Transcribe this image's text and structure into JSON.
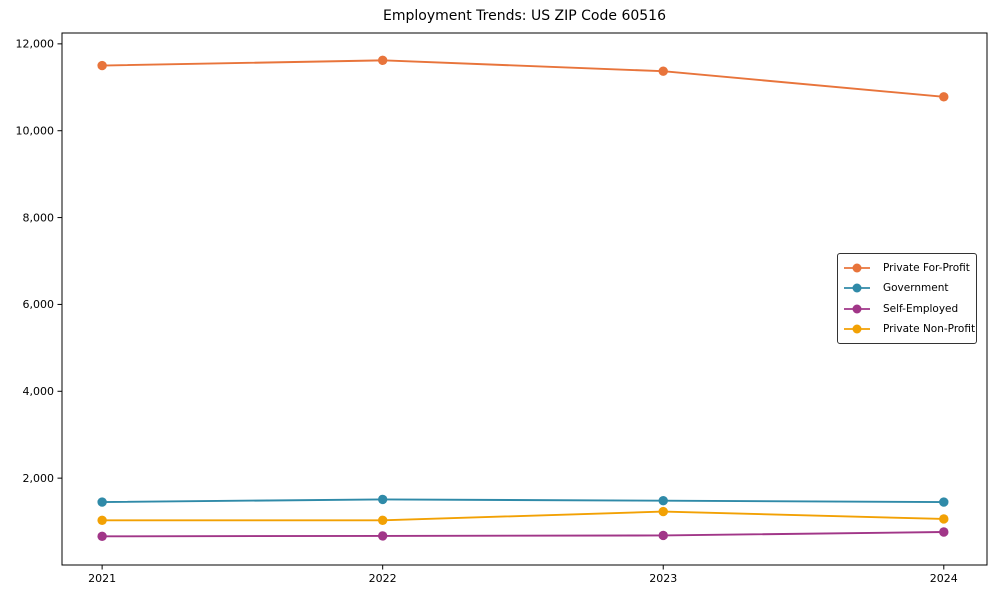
{
  "chart_data": {
    "type": "line",
    "title": "Employment Trends: US ZIP Code 60516",
    "xlabel": "",
    "ylabel": "",
    "categories": [
      2021,
      2022,
      2023,
      2024
    ],
    "x_tick_labels": [
      "2021",
      "2022",
      "2023",
      "2024"
    ],
    "y_ticks": [
      2000,
      4000,
      6000,
      8000,
      10000,
      12000
    ],
    "y_tick_labels": [
      "2,000",
      "4,000",
      "6,000",
      "8,000",
      "10,000",
      "12,000"
    ],
    "xlim": [
      2020.857,
      2024.154
    ],
    "ylim": [
      0,
      12250
    ],
    "grid": false,
    "legend_position": "center-right",
    "marker": "circle",
    "background_color": "#ffffff",
    "axis_color": "#000000",
    "series": [
      {
        "name": "Private For-Profit",
        "color": "#E8743B",
        "values": [
          11500,
          11620,
          11370,
          10780
        ]
      },
      {
        "name": "Government",
        "color": "#2F8AA8",
        "values": [
          1450,
          1510,
          1480,
          1450
        ]
      },
      {
        "name": "Self-Employed",
        "color": "#A13688",
        "values": [
          660,
          670,
          680,
          760
        ]
      },
      {
        "name": "Private Non-Profit",
        "color": "#F2A104",
        "values": [
          1030,
          1030,
          1230,
          1060
        ]
      }
    ]
  }
}
